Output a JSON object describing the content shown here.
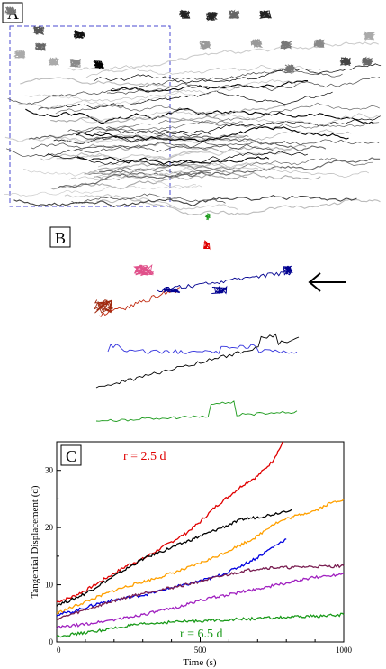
{
  "panels": {
    "a_label": "A",
    "b_label": "B",
    "c_label": "C"
  },
  "chart_data": {
    "type": "line",
    "title": "",
    "xlabel": "Time (s)",
    "ylabel": "Tangential Displacement (d)",
    "xlim": [
      0,
      1000
    ],
    "ylim": [
      0,
      35
    ],
    "xticks": [
      0,
      500,
      1000
    ],
    "yticks": [
      0,
      10,
      20,
      30
    ],
    "grid": false,
    "annotations": [
      {
        "text": "r = 2.5 d",
        "color": "#e00000"
      },
      {
        "text": "r = 6.5 d",
        "color": "#1a9a1a"
      }
    ],
    "series": [
      {
        "color": "#e00000",
        "x": [
          0,
          50,
          100,
          150,
          200,
          250,
          300,
          350,
          400,
          450,
          500,
          550,
          600,
          650,
          700,
          750,
          790
        ],
        "y": [
          7,
          7.8,
          9,
          10.5,
          12,
          13.5,
          14.5,
          16,
          17.5,
          19,
          21,
          23.5,
          25.5,
          27.5,
          29,
          31.5,
          35
        ]
      },
      {
        "color": "#000000",
        "x": [
          0,
          50,
          100,
          150,
          200,
          250,
          300,
          350,
          400,
          450,
          500,
          550,
          600,
          650,
          700,
          750,
          820
        ],
        "y": [
          6.5,
          7.3,
          8.5,
          10,
          11.5,
          13,
          14.5,
          15.5,
          16.5,
          17.5,
          18.5,
          19.5,
          20.5,
          21.5,
          21.8,
          22.3,
          23.2
        ]
      },
      {
        "color": "#ffa000",
        "x": [
          0,
          50,
          100,
          150,
          200,
          250,
          300,
          350,
          400,
          450,
          500,
          550,
          600,
          650,
          700,
          750,
          800,
          850,
          900,
          950,
          1000
        ],
        "y": [
          5,
          6,
          7,
          8,
          9,
          9.8,
          10.5,
          11.2,
          12,
          12.8,
          13.8,
          14.8,
          16,
          17.2,
          18.5,
          20.5,
          21.5,
          22.3,
          23,
          24.2,
          25
        ]
      },
      {
        "color": "#0000e0",
        "x": [
          0,
          50,
          100,
          150,
          200,
          250,
          300,
          350,
          400,
          450,
          500,
          550,
          600,
          650,
          700,
          750,
          800
        ],
        "y": [
          4.8,
          5.2,
          6,
          6.8,
          7.3,
          7.8,
          8.2,
          8.8,
          9.5,
          10,
          10.7,
          11.3,
          12.3,
          13.5,
          14.8,
          16.5,
          18
        ]
      },
      {
        "color": "#7a1f52",
        "x": [
          0,
          50,
          100,
          150,
          200,
          250,
          300,
          350,
          400,
          450,
          500,
          550,
          600,
          650,
          700,
          750,
          800,
          850,
          900,
          950,
          1000
        ],
        "y": [
          4,
          4.8,
          5.6,
          6.4,
          7.2,
          7.9,
          8.5,
          9,
          9.5,
          10,
          10.6,
          11.2,
          11.8,
          12.4,
          12.8,
          13,
          13,
          13.1,
          13.2,
          13.2,
          13.3
        ]
      },
      {
        "color": "#a020c0",
        "x": [
          0,
          50,
          100,
          150,
          200,
          250,
          300,
          350,
          400,
          450,
          500,
          550,
          600,
          650,
          700,
          750,
          800,
          850,
          900,
          950,
          1000
        ],
        "y": [
          2.5,
          2.8,
          3.1,
          3.5,
          3.9,
          4.3,
          4.8,
          5.3,
          5.8,
          6.5,
          7.3,
          7.8,
          8.3,
          8.8,
          9.3,
          9.8,
          10.3,
          10.8,
          11.3,
          11.6,
          12
        ]
      },
      {
        "color": "#1a9a1a",
        "x": [
          0,
          50,
          100,
          150,
          200,
          250,
          300,
          350,
          400,
          450,
          500,
          550,
          600,
          650,
          700,
          750,
          800,
          850,
          900,
          950,
          1000
        ],
        "y": [
          1,
          1.3,
          1.6,
          2,
          2.4,
          2.8,
          3.1,
          3.3,
          3.5,
          3.6,
          3.7,
          3.8,
          3.9,
          4,
          4.1,
          4.2,
          4.3,
          4.4,
          4.5,
          4.6,
          4.8
        ]
      }
    ]
  }
}
